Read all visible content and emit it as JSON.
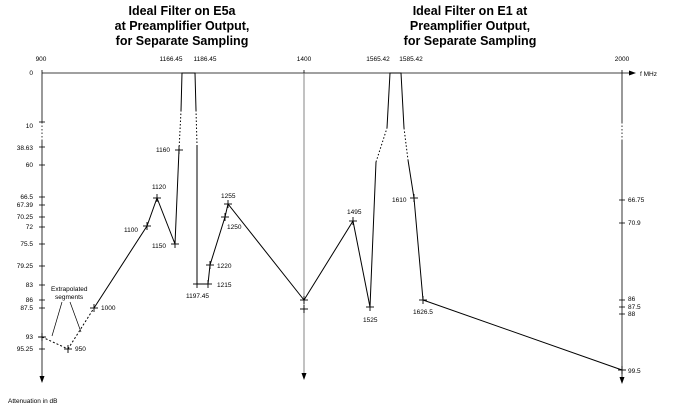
{
  "titles": {
    "left": [
      "Ideal Filter on E5a",
      "at Preamplifier Output,",
      "for Separate Sampling"
    ],
    "right": [
      "Ideal Filter on E1 at",
      "Preamplifier Output,",
      "for Separate Sampling"
    ]
  },
  "axis": {
    "x_unit": "f MHz",
    "y_label": "Attenuation in dB",
    "x_ticks": [
      "900",
      "1166.45",
      "1186.45",
      "1400",
      "1565.42",
      "1585.42",
      "2000"
    ],
    "left_y_ticks": [
      "0",
      "10",
      "38.63",
      "60",
      "66.5",
      "67.39",
      "70.25",
      "72",
      "75.5",
      "79.25",
      "83",
      "86",
      "87.5",
      "93",
      "95.25"
    ],
    "right_y_ticks": [
      "66.75",
      "70.9",
      "86",
      "87.5",
      "88",
      "99.5"
    ]
  },
  "annotation": {
    "line1": "Extrapolated",
    "line2": "segments"
  },
  "point_labels": [
    "1120",
    "1100",
    "1150",
    "1160",
    "1000",
    "950",
    "1255",
    "1250",
    "1220",
    "1215",
    "1197.45",
    "1495",
    "1525",
    "1610",
    "1626.5"
  ],
  "chart_data": {
    "type": "line",
    "x_unit": "f MHz",
    "y_unit": "Attenuation in dB",
    "y_reversed": true,
    "series": [
      {
        "points": [
          [
            900,
            93
          ],
          [
            950,
            95.25
          ],
          [
            1000,
            87.5
          ],
          [
            1100,
            72
          ],
          [
            1120,
            66.5
          ],
          [
            1150,
            75.5
          ],
          [
            1160,
            38.63
          ],
          [
            1166.45,
            0
          ],
          [
            1186.45,
            0
          ],
          [
            1197.45,
            83
          ],
          [
            1215,
            83
          ],
          [
            1220,
            79.25
          ],
          [
            1250,
            70.25
          ],
          [
            1255,
            67.39
          ],
          [
            1400,
            86
          ],
          [
            1495,
            70.25
          ],
          [
            1525,
            87.5
          ],
          [
            1565.42,
            0
          ],
          [
            1585.42,
            0
          ],
          [
            1610,
            66.75
          ],
          [
            1626.5,
            86
          ],
          [
            2000,
            99.5
          ]
        ]
      }
    ],
    "extrapolated": [
      [
        [
          900,
          93
        ],
        [
          950,
          95.25
        ]
      ],
      [
        [
          950,
          95.25
        ],
        [
          1000,
          87.5
        ]
      ]
    ]
  }
}
